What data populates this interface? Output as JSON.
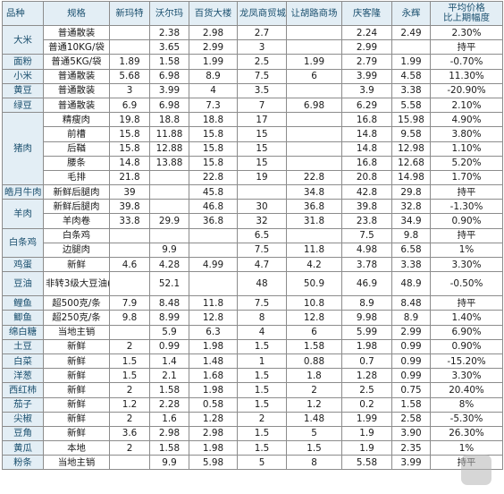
{
  "header": {
    "category": "品种",
    "spec": "规格",
    "stores": [
      "新玛特",
      "沃尔玛",
      "百货大楼",
      "龙凤商贸城",
      "让胡路商场",
      "庆客隆",
      "永辉"
    ],
    "avg_line1": "平均价格",
    "avg_line2": "比上期幅度"
  },
  "groups": [
    {
      "category": "大米",
      "rows": [
        {
          "spec": "普通散装",
          "values": [
            "",
            "2.38",
            "2.98",
            "2.7",
            "",
            "2.24",
            "2.49"
          ],
          "change": "2.30%"
        },
        {
          "spec": "普通10KG/袋",
          "values": [
            "",
            "3.65",
            "2.99",
            "3",
            "",
            "2.99",
            ""
          ],
          "change": "持平"
        }
      ]
    },
    {
      "category": "面粉",
      "rows": [
        {
          "spec": "普通5KG/袋",
          "values": [
            "1.89",
            "1.58",
            "1.99",
            "2.5",
            "1.99",
            "2.79",
            "1.99"
          ],
          "change": "-0.70%"
        }
      ]
    },
    {
      "category": "小米",
      "rows": [
        {
          "spec": "普通散装",
          "values": [
            "5.68",
            "6.98",
            "8.9",
            "7.5",
            "6",
            "3.99",
            "4.58"
          ],
          "change": "11.30%"
        }
      ]
    },
    {
      "category": "黄豆",
      "rows": [
        {
          "spec": "普通散装",
          "values": [
            "3",
            "3.99",
            "4",
            "3.5",
            "",
            "3.9",
            "3.38"
          ],
          "change": "-20.90%"
        }
      ]
    },
    {
      "category": "绿豆",
      "rows": [
        {
          "spec": "普通散装",
          "values": [
            "6.9",
            "6.98",
            "7.3",
            "7",
            "6.98",
            "6.29",
            "5.58"
          ],
          "change": "2.10%"
        }
      ]
    },
    {
      "category": "猪肉",
      "rows": [
        {
          "spec": "精瘦肉",
          "values": [
            "19.8",
            "18.8",
            "18.8",
            "17",
            "",
            "16.8",
            "15.98"
          ],
          "change": "4.90%"
        },
        {
          "spec": "前槽",
          "values": [
            "15.8",
            "11.88",
            "15.8",
            "15",
            "",
            "14.8",
            "9.58"
          ],
          "change": "3.80%"
        },
        {
          "spec": "后鞧",
          "values": [
            "15.8",
            "12.88",
            "15.8",
            "15",
            "",
            "14.8",
            "12.98"
          ],
          "change": "1.10%"
        },
        {
          "spec": "腰条",
          "values": [
            "14.8",
            "13.88",
            "15.8",
            "15",
            "",
            "16.8",
            "12.68"
          ],
          "change": "5.20%"
        },
        {
          "spec": "毛排",
          "values": [
            "21.8",
            "",
            "22.8",
            "19",
            "22.8",
            "20.8",
            "14.98"
          ],
          "change": "1.70%"
        }
      ]
    },
    {
      "category": "皓月牛肉",
      "rows": [
        {
          "spec": "新鲜后腿肉",
          "values": [
            "39",
            "",
            "45.8",
            "",
            "34.8",
            "42.8",
            "29.8"
          ],
          "change": "持平"
        }
      ]
    },
    {
      "category": "羊肉",
      "rows": [
        {
          "spec": "新鲜后腿肉",
          "values": [
            "39.8",
            "",
            "46.8",
            "30",
            "36.8",
            "39.8",
            "32.8"
          ],
          "change": "-1.30%"
        },
        {
          "spec": "羊肉卷",
          "values": [
            "33.8",
            "29.9",
            "36.8",
            "32",
            "31.8",
            "23.8",
            "34.9"
          ],
          "change": "0.90%"
        }
      ]
    },
    {
      "category": "白条鸡",
      "rows": [
        {
          "spec": "白条鸡",
          "values": [
            "",
            "",
            "",
            "6.5",
            "",
            "7.5",
            "9.8"
          ],
          "change": "持平"
        },
        {
          "spec": "边腿肉",
          "values": [
            "",
            "9.9",
            "",
            "7.5",
            "11.8",
            "4.98",
            "6.58"
          ],
          "change": "1%"
        }
      ]
    },
    {
      "category": "鸡蛋",
      "rows": [
        {
          "spec": "新鲜",
          "values": [
            "4.6",
            "4.28",
            "4.99",
            "4.7",
            "4.2",
            "3.78",
            "3.38"
          ],
          "change": "3.30%"
        }
      ]
    },
    {
      "category": "豆油",
      "rows": [
        {
          "spec": "非转3级大豆油(5升)",
          "values": [
            "",
            "52.1",
            "",
            "48",
            "50.9",
            "46.9",
            "48.9"
          ],
          "change": "-0.50%"
        }
      ]
    },
    {
      "category": "鲤鱼",
      "rows": [
        {
          "spec": "超500克/条",
          "values": [
            "7.9",
            "8.48",
            "11.8",
            "7.5",
            "10.8",
            "8.9",
            "8.48"
          ],
          "change": "持平"
        }
      ]
    },
    {
      "category": "鲫鱼",
      "rows": [
        {
          "spec": "超250克/条",
          "values": [
            "9.8",
            "8.99",
            "12.8",
            "8",
            "12.8",
            "9.98",
            "8.9"
          ],
          "change": "1.40%"
        }
      ]
    },
    {
      "category": "绵白糖",
      "rows": [
        {
          "spec": "当地主销",
          "values": [
            "",
            "5.9",
            "6.3",
            "4",
            "6",
            "5.99",
            "2.99"
          ],
          "change": "6.90%"
        }
      ]
    },
    {
      "category": "土豆",
      "rows": [
        {
          "spec": "新鲜",
          "values": [
            "2",
            "0.99",
            "1.98",
            "1.5",
            "1.58",
            "1.98",
            "0.99"
          ],
          "change": "0.90%"
        }
      ]
    },
    {
      "category": "白菜",
      "rows": [
        {
          "spec": "新鲜",
          "values": [
            "1.5",
            "1.4",
            "1.48",
            "1",
            "0.88",
            "0.7",
            "0.99"
          ],
          "change": "-15.20%"
        }
      ]
    },
    {
      "category": "洋葱",
      "rows": [
        {
          "spec": "新鲜",
          "values": [
            "1.5",
            "2.1",
            "1.68",
            "1.5",
            "1.8",
            "1.28",
            "0.99"
          ],
          "change": "3.30%"
        }
      ]
    },
    {
      "category": "西红柿",
      "rows": [
        {
          "spec": "新鲜",
          "values": [
            "2",
            "1.58",
            "1.98",
            "1.5",
            "2",
            "2.5",
            "0.75"
          ],
          "change": "20.40%"
        }
      ]
    },
    {
      "category": "茄子",
      "rows": [
        {
          "spec": "新鲜",
          "values": [
            "1.2",
            "2.28",
            "0.58",
            "1.5",
            "1.2",
            "0.2",
            "1.58"
          ],
          "change": "8%"
        }
      ]
    },
    {
      "category": "尖椒",
      "rows": [
        {
          "spec": "新鲜",
          "values": [
            "2",
            "1.6",
            "1.28",
            "2",
            "1.48",
            "1.99",
            "2.58"
          ],
          "change": "-5.30%"
        }
      ]
    },
    {
      "category": "豆角",
      "rows": [
        {
          "spec": "新鲜",
          "values": [
            "3.6",
            "2.98",
            "2.98",
            "1.5",
            "5",
            "1.9",
            "3.90"
          ],
          "change": "26.30%"
        }
      ]
    },
    {
      "category": "黄瓜",
      "rows": [
        {
          "spec": "本地",
          "values": [
            "2",
            "1.58",
            "1.98",
            "1.5",
            "1.5",
            "1.9",
            "2.35"
          ],
          "change": "1%"
        }
      ]
    },
    {
      "category": "粉条",
      "rows": [
        {
          "spec": "当地主销",
          "values": [
            "",
            "9.9",
            "5.98",
            "5",
            "8",
            "5.58",
            "3.99"
          ],
          "change": "持平"
        }
      ]
    }
  ]
}
